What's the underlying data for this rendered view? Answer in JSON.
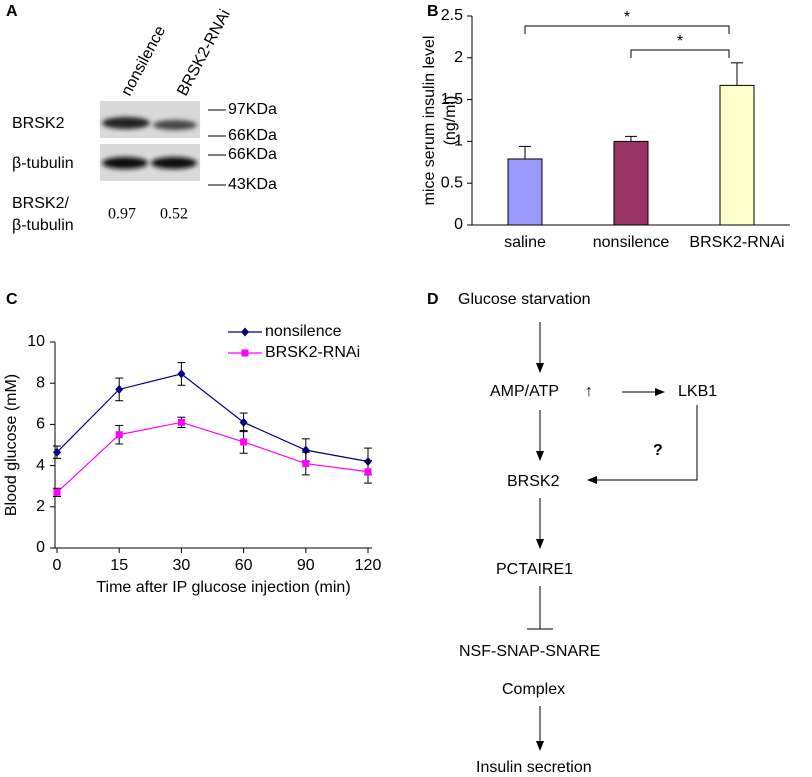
{
  "blot": {
    "label": "A",
    "lanes": [
      "nonsilence",
      "BRSK2-RNAi"
    ],
    "rows": [
      "BRSK2",
      "β-tubulin"
    ],
    "markers": [
      "97KDa",
      "66KDa",
      "66KDa",
      "43KDa"
    ],
    "ratio_label": [
      "BRSK2/",
      "β-tubulin"
    ],
    "ratios": [
      0.97,
      0.52
    ]
  },
  "chart_data": [
    {
      "type": "bar",
      "label": "B",
      "y_label": [
        "mice serum insulin level",
        "(ng/ml)"
      ],
      "categories": [
        "saline",
        "nonsilence",
        "BRSK2-RNAi"
      ],
      "values": [
        0.79,
        1.0,
        1.67
      ],
      "errors": [
        0.15,
        0.06,
        0.27
      ],
      "colors": [
        "#9999ff",
        "#993366",
        "#ffffcc"
      ],
      "ylim": [
        0,
        2.5
      ],
      "yticks": [
        0,
        0.5,
        1,
        1.5,
        2,
        2.5
      ],
      "annotations": [
        "*",
        "*"
      ]
    },
    {
      "type": "line",
      "label": "C",
      "x_label": "Time after IP glucose injection (min)",
      "y_label": "Blood glucose (mM)",
      "categories": [
        "0",
        "15",
        "30",
        "60",
        "90",
        "120"
      ],
      "series": [
        {
          "name": "nonsilence",
          "color": "#000080",
          "marker": "diamond",
          "values": [
            4.65,
            7.7,
            8.45,
            6.1,
            4.75,
            4.2
          ],
          "errors": [
            0.3,
            0.55,
            0.55,
            0.45,
            0.55,
            0.65
          ]
        },
        {
          "name": "BRSK2-RNAi",
          "color": "#ff00ff",
          "marker": "square",
          "values": [
            2.7,
            5.5,
            6.1,
            5.15,
            4.1,
            3.7
          ],
          "errors": [
            0.2,
            0.45,
            0.25,
            0.55,
            0.55,
            0.55
          ]
        }
      ],
      "ylim": [
        0,
        10
      ],
      "yticks": [
        0,
        2,
        4,
        6,
        8,
        10
      ]
    }
  ],
  "pathway": {
    "label": "D",
    "nodes": [
      "Glucose starvation",
      "AMP/ATP",
      "LKB1",
      "BRSK2",
      "PCTAIRE1",
      "NSF-SNAP-SNARE",
      "Complex",
      "Insulin secretion"
    ],
    "up": "↑",
    "question": "?"
  }
}
